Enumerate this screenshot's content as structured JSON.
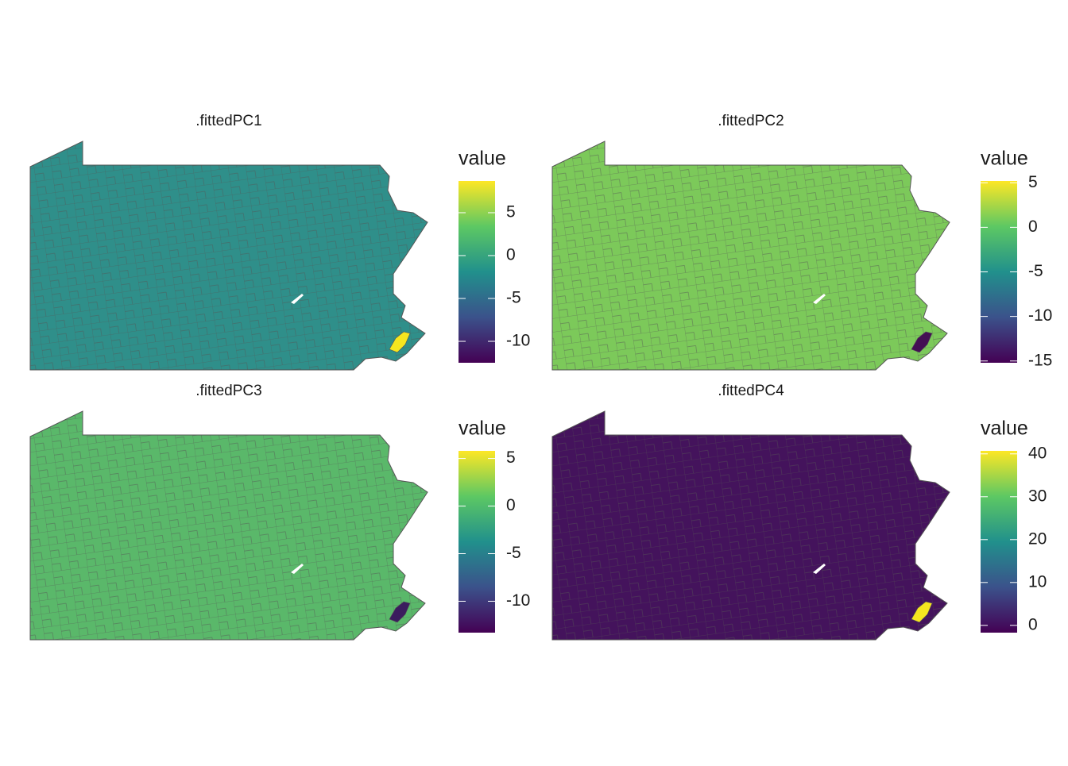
{
  "chart_data": [
    {
      "type": "map",
      "title": ".fittedPC1",
      "legend_title": "value",
      "color": "#2f8f8a",
      "accent_color": "#f6e61f",
      "legend_lim": [
        -12.5,
        8.7
      ],
      "legend_ticks": [
        -10,
        -5,
        0,
        5
      ]
    },
    {
      "type": "map",
      "title": ".fittedPC2",
      "legend_title": "value",
      "color": "#7cc95a",
      "accent_color": "#440f54",
      "legend_lim": [
        -15.2,
        5.2
      ],
      "legend_ticks": [
        -15,
        -10,
        -5,
        0,
        5
      ]
    },
    {
      "type": "map",
      "title": ".fittedPC3",
      "legend_title": "value",
      "color": "#5ab86a",
      "accent_color": "#3b1c5e",
      "legend_lim": [
        -13.3,
        5.8
      ],
      "legend_ticks": [
        -10,
        -5,
        0,
        5
      ]
    },
    {
      "type": "map",
      "title": ".fittedPC4",
      "legend_title": "value",
      "color": "#44135c",
      "accent_color": "#f6e61f",
      "legend_lim": [
        -1.7,
        40.7
      ],
      "legend_ticks": [
        0,
        10,
        20,
        30,
        40
      ]
    }
  ]
}
